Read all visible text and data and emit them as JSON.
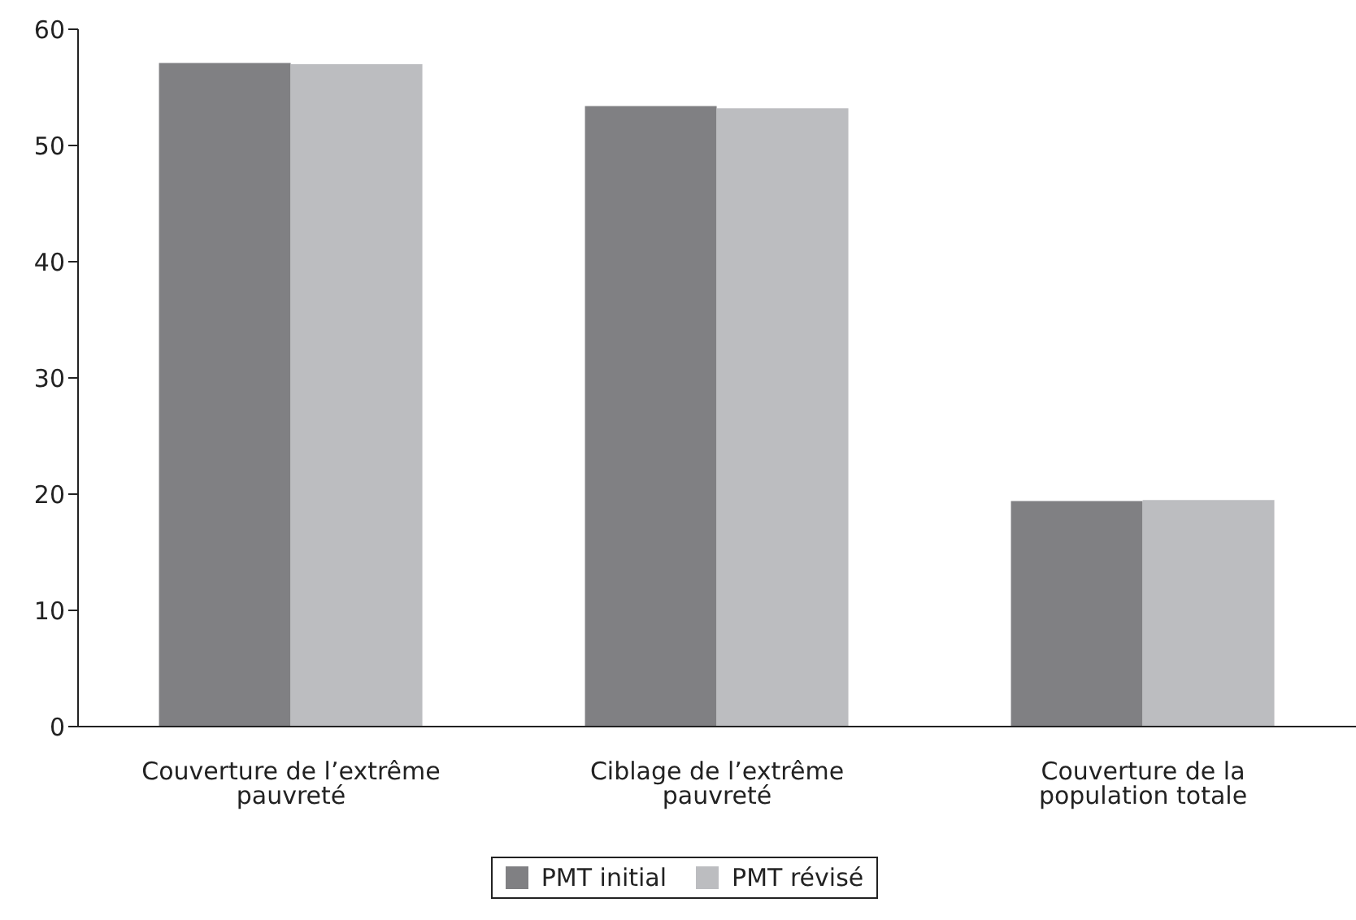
{
  "chart_data": {
    "type": "bar",
    "categories": [
      "Couverture de l’extrême pauvreté",
      "Ciblage de l’extrême pauvreté",
      "Couverture de la population totale"
    ],
    "series": [
      {
        "name": "PMT initial",
        "color": "#808083",
        "values": [
          57.1,
          53.4,
          19.4
        ]
      },
      {
        "name": "PMT révisé",
        "color": "#bcbdc0",
        "values": [
          57.0,
          53.2,
          19.5
        ]
      }
    ],
    "ylim": [
      0,
      60
    ],
    "yticks": [
      0,
      10,
      20,
      30,
      40,
      50,
      60
    ],
    "grid": false,
    "legend": "bottom"
  }
}
